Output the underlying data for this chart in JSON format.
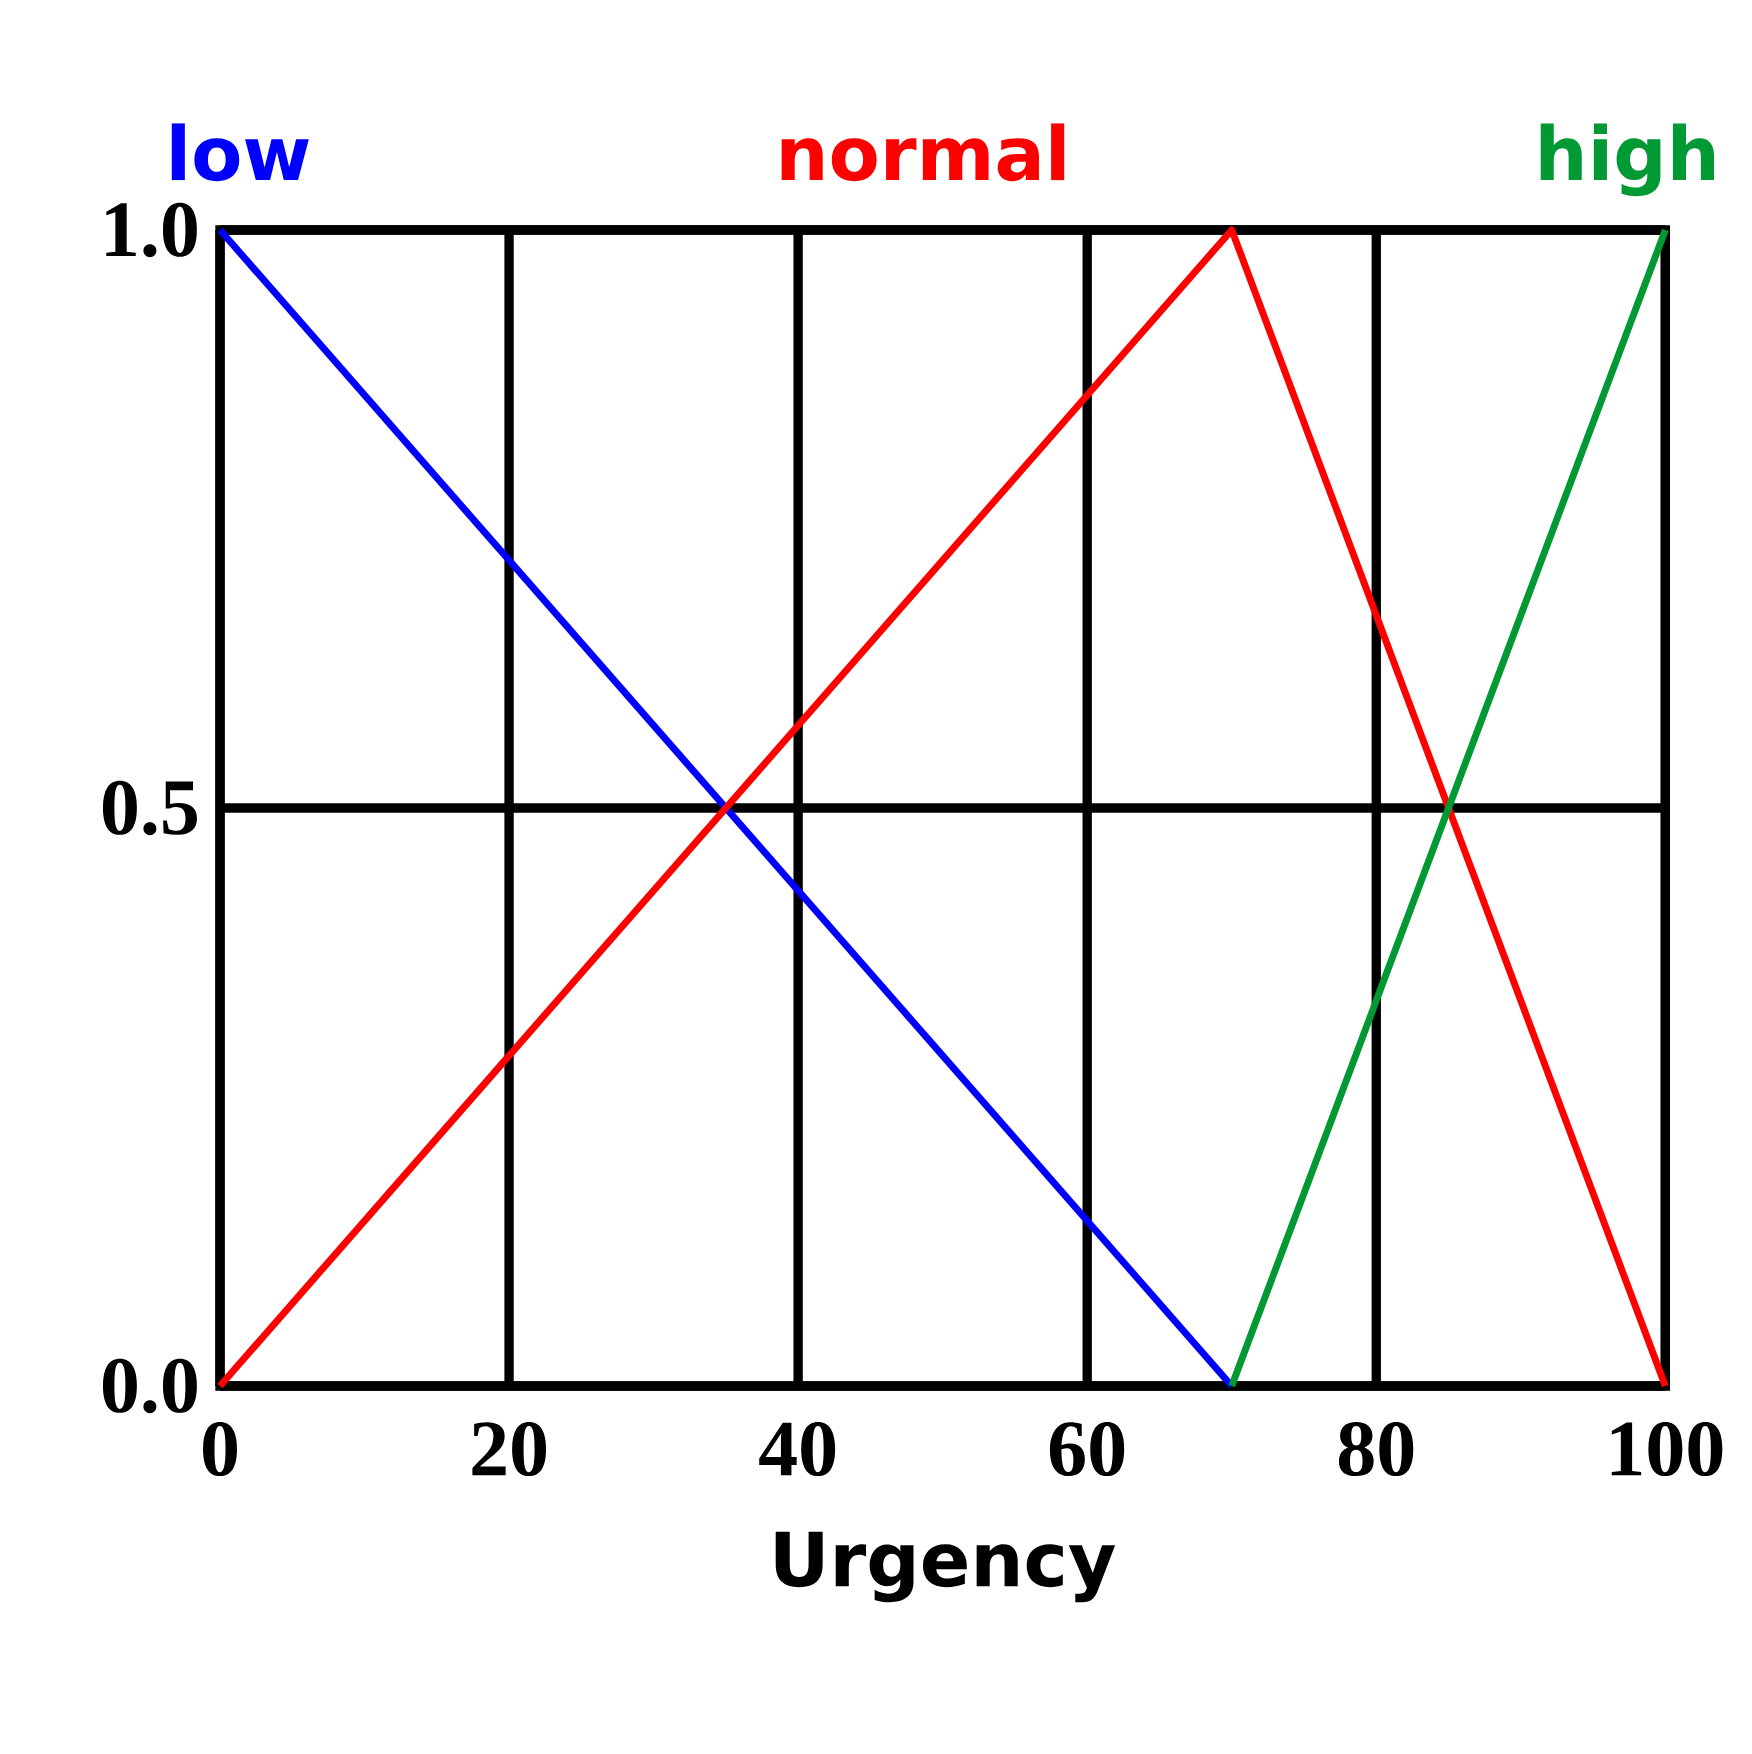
{
  "chart_data": {
    "type": "line",
    "xlabel": "Urgency",
    "series": [
      {
        "name": "low",
        "color": "#0000ff",
        "x": [
          0,
          70
        ],
        "values": [
          1.0,
          0.0
        ]
      },
      {
        "name": "normal",
        "color": "#ff0000",
        "x": [
          0,
          70,
          100
        ],
        "values": [
          0.0,
          1.0,
          0.0
        ]
      },
      {
        "name": "high",
        "color": "#009933",
        "x": [
          70,
          100
        ],
        "values": [
          0.0,
          1.0
        ]
      }
    ],
    "xlim": [
      0,
      100
    ],
    "ylim": [
      0,
      1
    ],
    "xticks": [
      0,
      20,
      40,
      60,
      80,
      100
    ],
    "yticks": [
      {
        "value": 0,
        "label": "0.0"
      },
      {
        "value": 0.5,
        "label": "0.5"
      },
      {
        "value": 1,
        "label": "1.0"
      }
    ],
    "grid": true,
    "legend": "top",
    "marker": "none",
    "line_style": "solid"
  }
}
